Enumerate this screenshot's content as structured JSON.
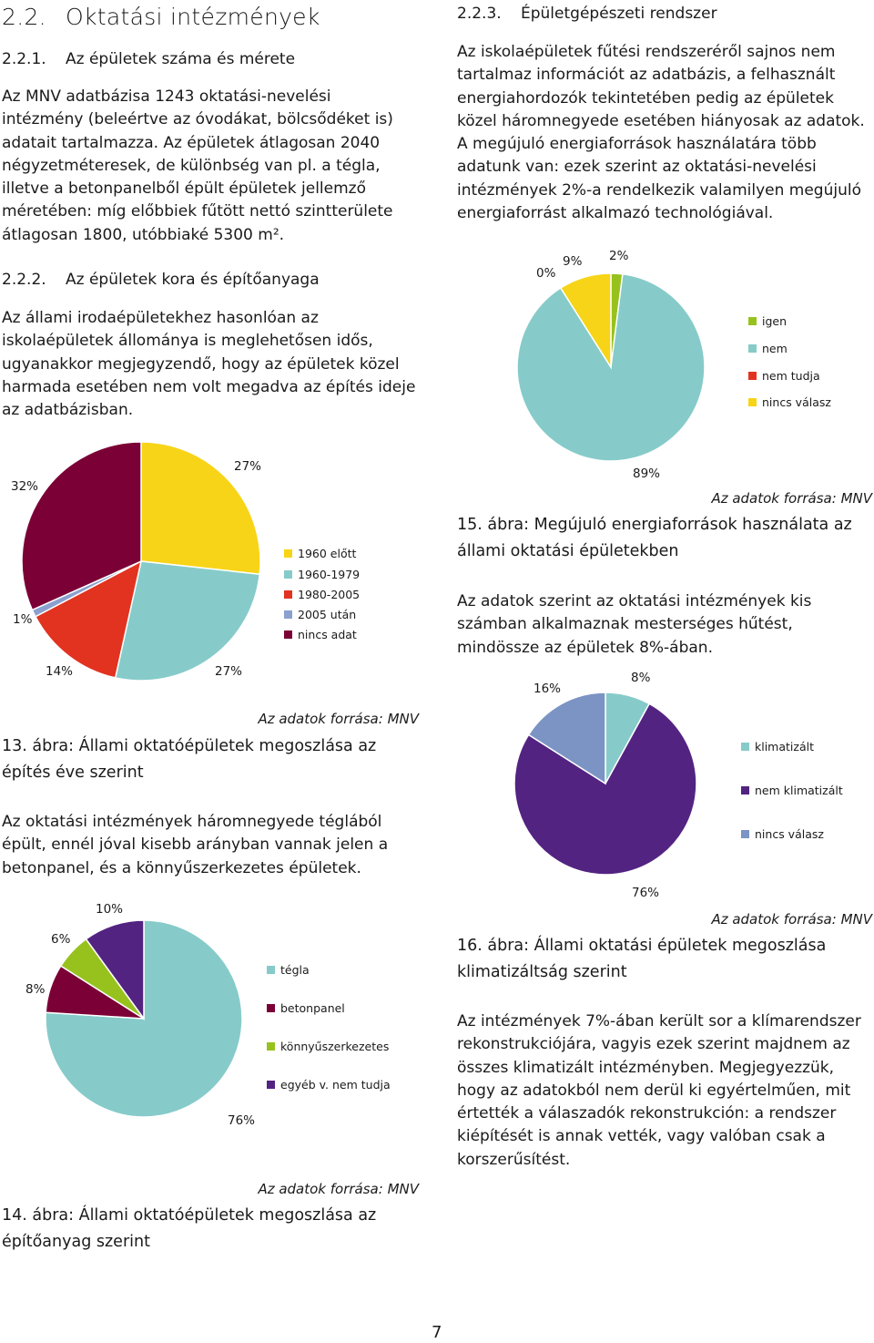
{
  "colors": {
    "yellow": "#f7d417",
    "teal": "#86cbc9",
    "red": "#e23320",
    "blue": "#8aa0cf",
    "maroon": "#7b0036",
    "green": "#97c21e",
    "purple": "#532381",
    "slate": "#7b94c4"
  },
  "left": {
    "heading": {
      "num": "2.2.",
      "title": "Oktatási intézmények"
    },
    "sub1": {
      "num": "2.2.1.",
      "title": "Az épületek száma és mérete"
    },
    "para1": [
      "Az MNV adatbázisa 1243 oktatási-nevelési",
      "intézmény (beleértve az óvodákat, bölcsődéket is)",
      "adatait tartalmazza. Az épületek átlagosan 2040",
      "négyzetméteresek, de különbség van pl. a tégla,",
      "illetve a betonpanelből épült épületek jellemző",
      "méretében: míg előbbiek fűtött nettó szintterülete",
      "átlagosan 1800, utóbbiaké 5300 m²."
    ],
    "sub2": {
      "num": "2.2.2.",
      "title": "Az épületek kora és építőanyaga"
    },
    "para2": [
      "Az állami irodaépületekhez hasonlóan az",
      "iskolaépületek állománya is meglehetősen idős,",
      "ugyanakkor megjegyzendő, hogy az épületek közel",
      "harmada esetében nem volt megadva az építés ideje",
      "az adatbázisban."
    ],
    "source1": "Az adatok forrása: MNV",
    "caption13": [
      "13. ábra: Állami oktatóépületek megoszlása az",
      "építés éve szerint"
    ],
    "para3": [
      "Az oktatási intézmények háromnegyede téglából",
      "épült, ennél jóval kisebb arányban vannak jelen a",
      "betonpanel, és a könnyűszerkezetes épületek."
    ],
    "source2": "Az adatok forrása: MNV",
    "caption14": [
      "14. ábra: Állami oktatóépületek megoszlása az",
      "építőanyag szerint"
    ]
  },
  "right": {
    "sub3": {
      "num": "2.2.3.",
      "title": "Épületgépészeti rendszer"
    },
    "para1": [
      "Az iskolaépületek fűtési rendszeréről sajnos nem",
      "tartalmaz információt az adatbázis, a felhasznált",
      "energiahordozók tekintetében pedig az épületek",
      "közel háromnegyede esetében hiányosak az adatok.",
      "A megújuló energiaforrások használatára több",
      "adatunk van: ezek szerint az oktatási-nevelési",
      "intézmények 2%-a rendelkezik valamilyen megújuló",
      "energiaforrást alkalmazó technológiával."
    ],
    "source1": "Az adatok forrása: MNV",
    "caption15": [
      "15. ábra: Megújuló energiaforrások használata az",
      "állami oktatási épületekben"
    ],
    "para2": [
      "Az adatok szerint az oktatási intézmények kis",
      "számban alkalmaznak mesterséges hűtést,",
      "mindössze az épületek 8%-ában."
    ],
    "source2": "Az adatok forrása: MNV",
    "caption16": [
      "16. ábra: Állami oktatási épületek megoszlása",
      "klimatizáltság szerint"
    ],
    "para3": [
      "Az intézmények 7%-ában került sor a klímarendszer",
      "rekonstrukciójára, vagyis ezek szerint  majdnem az",
      "összes klimatizált intézményben. Megjegyezzük,",
      "hogy az adatokból nem derül ki egyértelműen, mit",
      "értették a válaszadók rekonstrukción: a rendszer",
      "kiépítését is annak vették, vagy valóban csak a",
      "korszerűsítést."
    ]
  },
  "page_number": "7",
  "chart_data": [
    {
      "type": "pie",
      "id": "chart13",
      "categories": [
        "1960 előtt",
        "1960-1979",
        "1980-2005",
        "2005 után",
        "nincs adat"
      ],
      "values": [
        27,
        27,
        14,
        1,
        32
      ],
      "labels": [
        "27%",
        "27%",
        "14%",
        "1%",
        "32%"
      ],
      "colors": [
        "#f7d417",
        "#86cbc9",
        "#e23320",
        "#8aa0cf",
        "#7b0036"
      ],
      "legend": "right"
    },
    {
      "type": "pie",
      "id": "chart14",
      "categories": [
        "tégla",
        "betonpanel",
        "könnyűszerkezetes",
        "egyéb v. nem tudja"
      ],
      "values": [
        76,
        8,
        6,
        10
      ],
      "labels": [
        "76%",
        "8%",
        "6%",
        "10%"
      ],
      "colors": [
        "#86cbc9",
        "#7b0036",
        "#97c21e",
        "#532381"
      ],
      "legend": "right"
    },
    {
      "type": "pie",
      "id": "chart15",
      "categories": [
        "igen",
        "nem",
        "nem tudja",
        "nincs válasz"
      ],
      "values": [
        2,
        89,
        0,
        9
      ],
      "labels": [
        "2%",
        "89%",
        "0%",
        "9%"
      ],
      "colors": [
        "#97c21e",
        "#86cbc9",
        "#e23320",
        "#f7d417"
      ],
      "legend": "right"
    },
    {
      "type": "pie",
      "id": "chart16",
      "categories": [
        "klimatizált",
        "nem klimatizált",
        "nincs válasz"
      ],
      "values": [
        8,
        76,
        16
      ],
      "labels": [
        "8%",
        "76%",
        "16%"
      ],
      "colors": [
        "#86cbc9",
        "#532381",
        "#7b94c4"
      ],
      "legend": "right"
    }
  ]
}
